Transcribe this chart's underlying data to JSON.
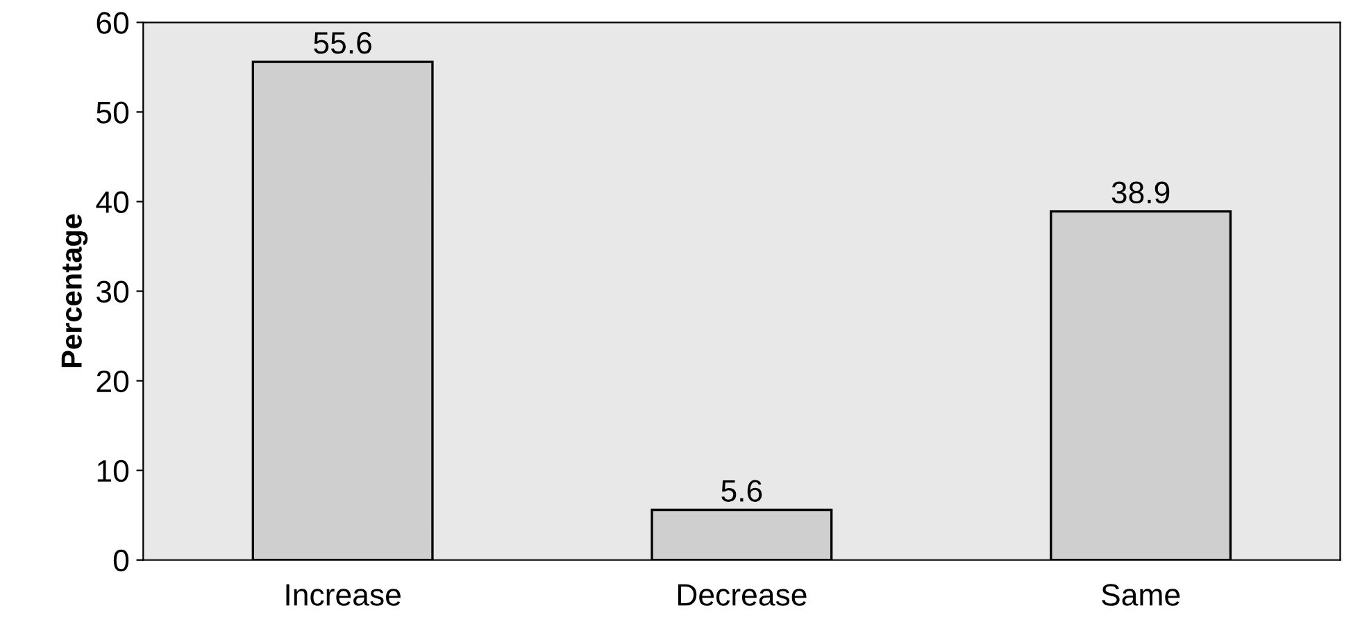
{
  "chart_data": {
    "type": "bar",
    "ylabel": "Percentage",
    "categories": [
      "Increase",
      "Decrease",
      "Same"
    ],
    "values": [
      55.6,
      5.6,
      38.9
    ],
    "color": "#cfcfcf",
    "data_labels": true,
    "ylim": [
      0,
      60
    ],
    "yticks": [
      0,
      10,
      20,
      30,
      40,
      50,
      60
    ],
    "grid": false,
    "legend": false
  }
}
